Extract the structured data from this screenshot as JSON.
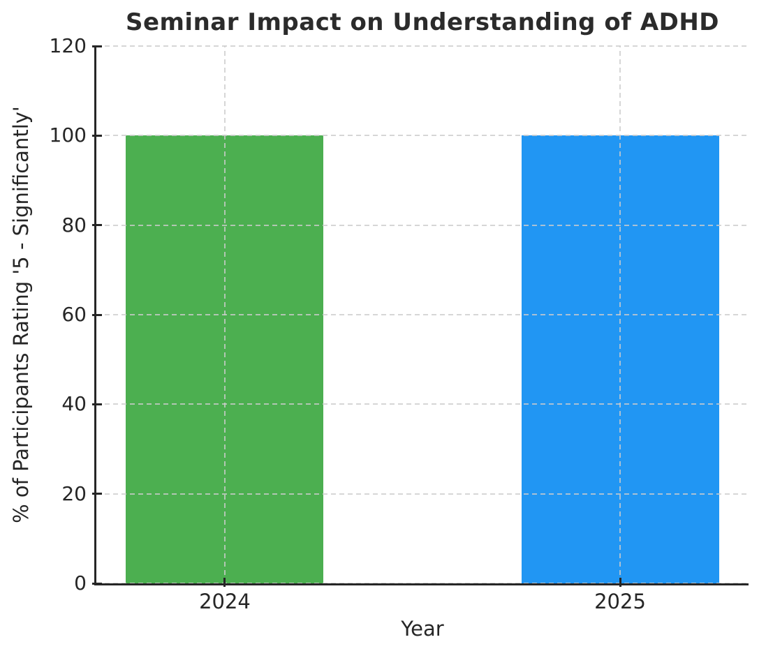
{
  "chart_data": {
    "type": "bar",
    "title": "Seminar Impact on Understanding of ADHD",
    "xlabel": "Year",
    "ylabel": "% of Participants Rating '5 - Significantly'",
    "categories": [
      "2024",
      "2025"
    ],
    "values": [
      100,
      100
    ],
    "bar_colors": [
      "#4CAF50",
      "#2196F3"
    ],
    "ylim": [
      0,
      120
    ],
    "yticks": [
      0,
      20,
      40,
      60,
      80,
      100,
      120
    ],
    "x_positions": [
      0,
      1
    ],
    "x_range": [
      -0.325,
      1.325
    ],
    "bar_width_data_units": 0.5,
    "grid": "dashed gray, horizontal at every ytick and vertical at each category, drawn above bars",
    "grid_color": "#cccccc",
    "spine_color": "#262626",
    "text_color": "#262626",
    "spines": "left and bottom only",
    "legend": "none",
    "background": "#ffffff"
  }
}
